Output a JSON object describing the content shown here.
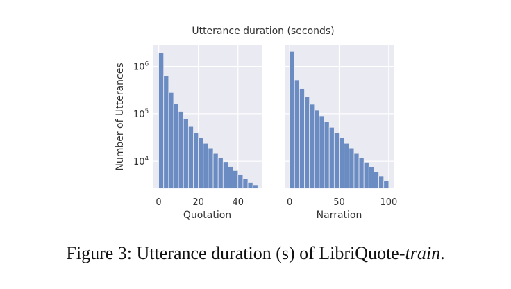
{
  "chart_data": {
    "type": "bar",
    "title": "Utterance duration (seconds)",
    "ylabel": "Number of Utterances",
    "yscale": "log",
    "ylim": [
      2700,
      2800000
    ],
    "yticks": [
      {
        "value": 10000,
        "base": "10",
        "exp": "4"
      },
      {
        "value": 100000,
        "base": "10",
        "exp": "5"
      },
      {
        "value": 1000000,
        "base": "10",
        "exp": "6"
      }
    ],
    "grid": true,
    "colors": {
      "bar": "#6b8cc2",
      "panel": "#eaeaf2",
      "grid": "#ffffff"
    },
    "panels": [
      {
        "xlabel": "Quotation",
        "xlim": [
          -3,
          52
        ],
        "xticks": [
          0,
          20,
          40
        ],
        "bin_width": 2.5,
        "bin_starts": [
          0,
          2.5,
          5,
          7.5,
          10,
          12.5,
          15,
          17.5,
          20,
          22.5,
          25,
          27.5,
          30,
          32.5,
          35,
          37.5,
          40,
          42.5,
          45,
          47.5
        ],
        "values": [
          1900000,
          640000,
          280000,
          165000,
          112000,
          78000,
          54000,
          40000,
          31000,
          24000,
          19000,
          15000,
          12000,
          9800,
          7800,
          6400,
          5200,
          4300,
          3600,
          3100
        ]
      },
      {
        "xlabel": "Narration",
        "xlim": [
          -5,
          105
        ],
        "xticks": [
          0,
          50,
          100
        ],
        "bin_width": 5,
        "bin_starts": [
          0,
          5,
          10,
          15,
          20,
          25,
          30,
          35,
          40,
          45,
          50,
          55,
          60,
          65,
          70,
          75,
          80,
          85,
          90,
          95
        ],
        "values": [
          2050000,
          520000,
          340000,
          230000,
          160000,
          118000,
          90000,
          68000,
          52000,
          40000,
          31000,
          24000,
          19000,
          15000,
          12000,
          9600,
          7600,
          6000,
          4800,
          3900
        ]
      }
    ]
  },
  "caption": {
    "prefix": "Figure 3: Utterance duration (s) of LibriQuote-",
    "italic": "train",
    "suffix": "."
  }
}
